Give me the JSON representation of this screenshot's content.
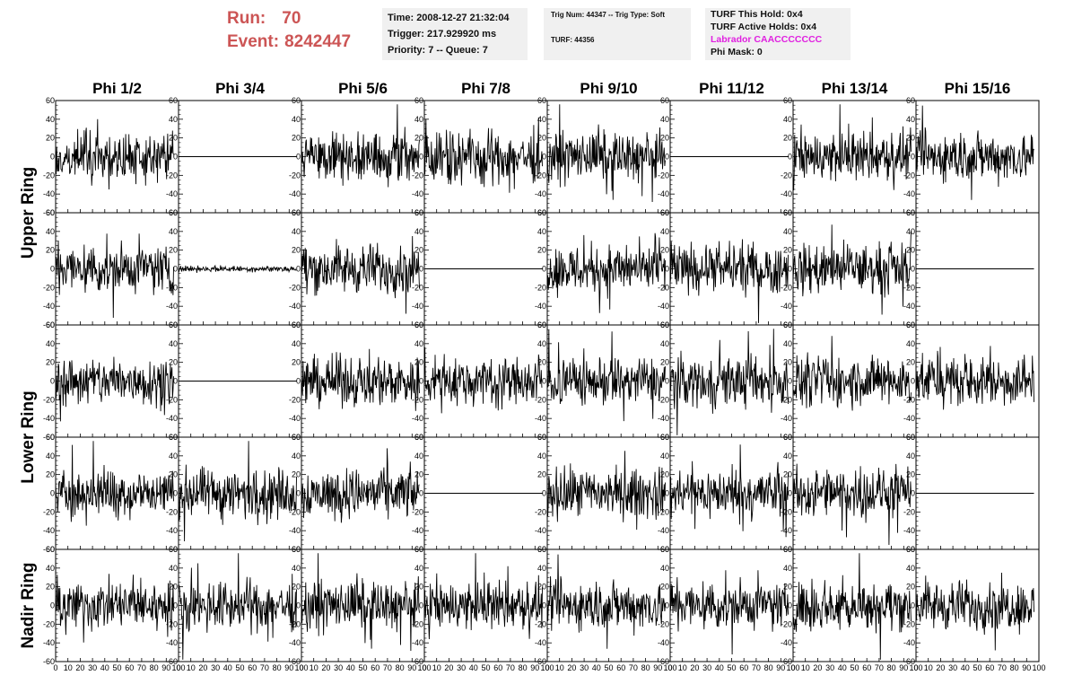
{
  "header": {
    "run_label": "Run:",
    "run_value": "70",
    "event_label": "Event:",
    "event_value": "8242447"
  },
  "time_box": {
    "time": "Time: 2008-12-27 21:32:04",
    "trigger": "Trigger: 217.929920 ms",
    "priority": "Priority: 7 -- Queue: 7"
  },
  "trig_box": {
    "trig_line": "Trig Num: 44347 -- Trig Type: Soft",
    "turf_line": "TURF: 44356"
  },
  "turf_box": {
    "hold": "TURF This Hold: 0x4",
    "active": "TURF Active Holds: 0x4",
    "labrador": "Labrador CAACCCCCCC",
    "phi_mask": "Phi Mask: 0"
  },
  "colors": {
    "run_event": "#cc5555",
    "labrador": "#e020e0",
    "info_box_bg": "#f0f0f0",
    "trace": "#000000"
  },
  "chart_data": {
    "type": "line",
    "layout": "grid of 5 rows x 8 columns of waveform panels",
    "column_titles": [
      "Phi 1/2",
      "Phi 3/4",
      "Phi 5/6",
      "Phi 7/8",
      "Phi 9/10",
      "Phi 11/12",
      "Phi 13/14",
      "Phi 15/16"
    ],
    "ring_labels": [
      {
        "label": "Upper Ring",
        "rows": [
          0,
          1
        ]
      },
      {
        "label": "Lower Ring",
        "rows": [
          2,
          3
        ]
      },
      {
        "label": "Nadir Ring",
        "rows": [
          4
        ]
      }
    ],
    "xlim": [
      0,
      100
    ],
    "ylim": [
      -60,
      60
    ],
    "x_ticks": [
      "0",
      "10",
      "20",
      "30",
      "40",
      "50",
      "60",
      "70",
      "80",
      "90",
      "100"
    ],
    "y_ticks": [
      "60",
      "40",
      "20",
      "0",
      "-20",
      "-40",
      "-60"
    ],
    "grid": false,
    "trace_points": 220,
    "trace_x_range": [
      0,
      96
    ],
    "amplitude_kind": {
      "noise": "random trace, roughly +/-20 to +/-40",
      "small": "low-amplitude trace, roughly +/-3",
      "flat": "constant trace at 0"
    },
    "panels": [
      [
        "noise",
        "flat",
        "noise",
        "noise",
        "noise",
        "flat",
        "noise",
        "noise"
      ],
      [
        "noise",
        "small",
        "noise",
        "flat",
        "noise",
        "noise",
        "noise",
        "flat"
      ],
      [
        "noise",
        "flat",
        "noise",
        "noise",
        "noise",
        "noise",
        "noise",
        "noise"
      ],
      [
        "noise",
        "noise",
        "noise",
        "flat",
        "noise",
        "noise",
        "noise",
        "flat"
      ],
      [
        "noise",
        "noise",
        "noise",
        "noise",
        "noise",
        "noise",
        "noise",
        "noise"
      ]
    ]
  }
}
